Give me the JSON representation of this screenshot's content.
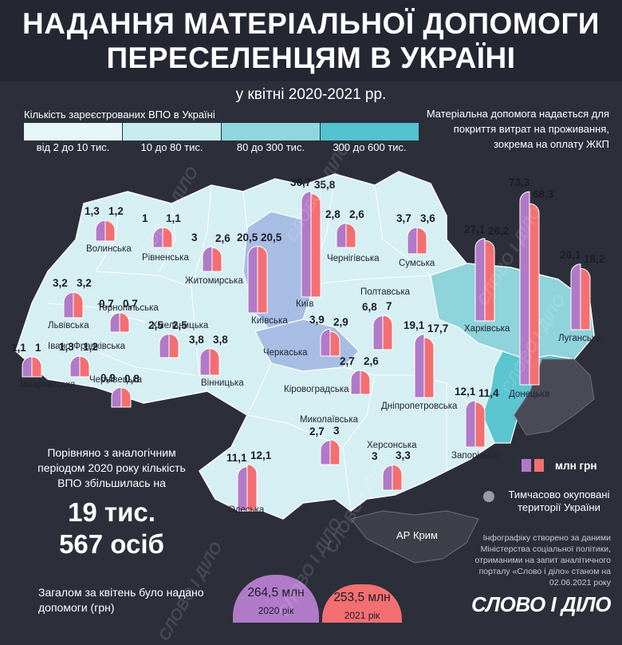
{
  "title": {
    "line1": "НАДАННЯ МАТЕРІАЛЬНОЇ ДОПОМОГИ",
    "line2": "ПЕРЕСЕЛЕНЦЯМ В УКРАЇНІ"
  },
  "subtitle": "у квітні 2020-2021 рр.",
  "legend": {
    "title": "Кількість зареєстрованих ВПО в Україні",
    "items": [
      {
        "label": "від 2 до 10 тис.",
        "color": "#e6f6f8"
      },
      {
        "label": "10 до 80 тис.",
        "color": "#c8ebef"
      },
      {
        "label": "80 до 300 тис.",
        "color": "#90d6de"
      },
      {
        "label": "300 до 600 тис.",
        "color": "#52c3cf"
      }
    ]
  },
  "note": "Матеріальна допомога надається для покриття витрат на проживання, зокрема на оплату ЖКП",
  "unit_legend": "млн грн",
  "occupied_label": "Тимчасово окуповані території України",
  "crimea_label": "АР Крим",
  "comparison": {
    "text": "Порівняно з аналогічним періодом 2020 року кількість ВПО збільшилась на",
    "big_line1": "19 тис.",
    "big_line2": "567 осіб"
  },
  "totals": {
    "text": "Загалом за квітень було надано допомоги (грн)",
    "v2020": "264,5 млн",
    "y2020": "2020 рік",
    "v2021": "253,5 млн",
    "y2021": "2021 рік"
  },
  "source": "Інфографіку створено за даними Міністерства соціальної політики, отриманими на запит аналітичного порталу «Слово і діло» станом на 02.06.2021 року",
  "brand": "СЛОВО І ДІЛО",
  "watermark": "СЛОВО І ДІЛО",
  "colors": {
    "y2020": "#b07ac8",
    "y2021": "#f36f72",
    "outline": "#ffffff"
  },
  "chart_data": {
    "type": "bar",
    "series": [
      {
        "name": "2020",
        "color": "#b07ac8"
      },
      {
        "name": "2021",
        "color": "#f36f72"
      }
    ],
    "regions": [
      {
        "name": "Волинська",
        "v2020": 1.3,
        "v2020_label": "1,3",
        "v2021": 1.2,
        "v2021_label": "1,2"
      },
      {
        "name": "Рівненська",
        "v2020": 1,
        "v2020_label": "1",
        "v2021": 1.1,
        "v2021_label": "1,1"
      },
      {
        "name": "Житомирська",
        "v2020": 3,
        "v2020_label": "3",
        "v2021": 2.6,
        "v2021_label": "2,6"
      },
      {
        "name": "Київська",
        "v2020": 20.5,
        "v2020_label": "20,5",
        "v2021": 20.5,
        "v2021_label": "20,5"
      },
      {
        "name": "Київ",
        "v2020": 36.7,
        "v2020_label": "36,7",
        "v2021": 35.8,
        "v2021_label": "35,8"
      },
      {
        "name": "Чернігівська",
        "v2020": 2.8,
        "v2020_label": "2,8",
        "v2021": 2.6,
        "v2021_label": "2,6"
      },
      {
        "name": "Сумська",
        "v2020": 3.7,
        "v2020_label": "3,7",
        "v2021": 3.6,
        "v2021_label": "3,6"
      },
      {
        "name": "Харківська",
        "v2020": 27.1,
        "v2020_label": "27,1",
        "v2021": 26.2,
        "v2021_label": "26,2"
      },
      {
        "name": "Донецька",
        "v2020": 73.3,
        "v2020_label": "73,3",
        "v2021": 68.3,
        "v2021_label": "68,3"
      },
      {
        "name": "Луганська",
        "v2020": 20.1,
        "v2020_label": "20,1",
        "v2021": 18.2,
        "v2021_label": "18,2"
      },
      {
        "name": "Львівська",
        "v2020": 3.2,
        "v2020_label": "3,2",
        "v2021": 3.2,
        "v2021_label": "3,2"
      },
      {
        "name": "Тернопільська",
        "v2020": 0.7,
        "v2020_label": "0,7",
        "v2021": 0.7,
        "v2021_label": "0,7"
      },
      {
        "name": "Хмельницька",
        "v2020": 2.5,
        "v2020_label": "2,5",
        "v2021": 2.5,
        "v2021_label": "2,5"
      },
      {
        "name": "Вінницька",
        "v2020": 3.8,
        "v2020_label": "3,8",
        "v2021": 3.8,
        "v2021_label": "3,8"
      },
      {
        "name": "Черкаська",
        "v2020": 3.9,
        "v2020_label": "3,9",
        "v2021": 2.9,
        "v2021_label": "2,9"
      },
      {
        "name": "Полтавська",
        "v2020": 6.8,
        "v2020_label": "6,8",
        "v2021": 7,
        "v2021_label": "7"
      },
      {
        "name": "Дніпропетровська",
        "v2020": 19.1,
        "v2020_label": "19,1",
        "v2021": 17.7,
        "v2021_label": "17,7"
      },
      {
        "name": "Закарпатська",
        "v2020": 1.1,
        "v2020_label": "1,1",
        "v2021": 1,
        "v2021_label": "1"
      },
      {
        "name": "Івано-Франківська",
        "v2020": 1.3,
        "v2020_label": "1,3",
        "v2021": 1.2,
        "v2021_label": "1,2"
      },
      {
        "name": "Чернівецька",
        "v2020": 0.9,
        "v2020_label": "0,9",
        "v2021": 0.8,
        "v2021_label": "0,8"
      },
      {
        "name": "Кіровоградська",
        "v2020": 2.7,
        "v2020_label": "2,7",
        "v2021": 2.6,
        "v2021_label": "2,6"
      },
      {
        "name": "Запорізька",
        "v2020": 12.1,
        "v2020_label": "12,1",
        "v2021": 11.4,
        "v2021_label": "11,4"
      },
      {
        "name": "Миколаївська",
        "v2020": 2.7,
        "v2020_label": "2,7",
        "v2021": 3,
        "v2021_label": "3"
      },
      {
        "name": "Одеська",
        "v2020": 11.1,
        "v2020_label": "11,1",
        "v2021": 12.1,
        "v2021_label": "12,1"
      },
      {
        "name": "Херсонська",
        "v2020": 3,
        "v2020_label": "3",
        "v2021": 3.3,
        "v2021_label": "3,3"
      }
    ]
  }
}
